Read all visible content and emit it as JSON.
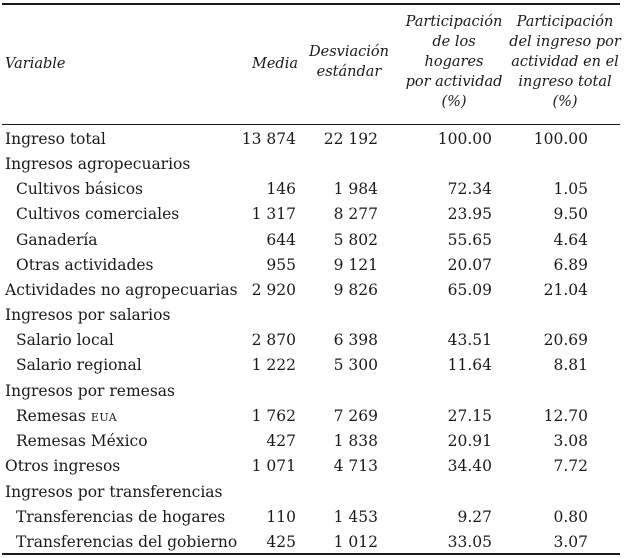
{
  "header": {
    "variable": "Variable",
    "media": "Media",
    "desviacion": [
      "Desviación",
      "estándar"
    ],
    "participacion_hogares": [
      "Participación",
      "de los",
      "hogares",
      "por actividad",
      "(%)"
    ],
    "participacion_ingreso": [
      "Participación",
      "del ingreso por",
      "actividad en el",
      "ingreso total",
      "(%)"
    ]
  },
  "rows": [
    {
      "label": "Ingreso total",
      "indent": false,
      "media": "13 874",
      "desv": "22 192",
      "hog": "100.00",
      "ing": "100.00"
    },
    {
      "label": "Ingresos agropecuarios",
      "indent": false,
      "media": "",
      "desv": "",
      "hog": "",
      "ing": ""
    },
    {
      "label": "Cultivos básicos",
      "indent": true,
      "media": "146",
      "desv": "1 984",
      "hog": "72.34",
      "ing": "1.05"
    },
    {
      "label": "Cultivos comerciales",
      "indent": true,
      "media": "1 317",
      "desv": "8 277",
      "hog": "23.95",
      "ing": "9.50"
    },
    {
      "label": "Ganadería",
      "indent": true,
      "media": "644",
      "desv": "5 802",
      "hog": "55.65",
      "ing": "4.64"
    },
    {
      "label": "Otras actividades",
      "indent": true,
      "media": "955",
      "desv": "9 121",
      "hog": "20.07",
      "ing": "6.89"
    },
    {
      "label": "Actividades no agropecuarias",
      "indent": false,
      "media": "2 920",
      "desv": "9 826",
      "hog": "65.09",
      "ing": "21.04"
    },
    {
      "label": "Ingresos por salarios",
      "indent": false,
      "media": "",
      "desv": "",
      "hog": "",
      "ing": ""
    },
    {
      "label": "Salario local",
      "indent": true,
      "media": "2 870",
      "desv": "6 398",
      "hog": "43.51",
      "ing": "20.69"
    },
    {
      "label": "Salario regional",
      "indent": true,
      "media": "1 222",
      "desv": "5 300",
      "hog": "11.64",
      "ing": "8.81"
    },
    {
      "label": "Ingresos por remesas",
      "indent": false,
      "media": "",
      "desv": "",
      "hog": "",
      "ing": ""
    },
    {
      "label": "Remesas",
      "suffix": "EUA",
      "indent": true,
      "media": "1 762",
      "desv": "7 269",
      "hog": "27.15",
      "ing": "12.70"
    },
    {
      "label": "Remesas México",
      "indent": true,
      "media": "427",
      "desv": "1 838",
      "hog": "20.91",
      "ing": "3.08"
    },
    {
      "label": "Otros ingresos",
      "indent": false,
      "media": "1 071",
      "desv": "4 713",
      "hog": "34.40",
      "ing": "7.72"
    },
    {
      "label": "Ingresos por transferencias",
      "indent": false,
      "media": "",
      "desv": "",
      "hog": "",
      "ing": ""
    },
    {
      "label": "Transferencias de hogares",
      "indent": true,
      "media": "110",
      "desv": "1 453",
      "hog": "9.27",
      "ing": "0.80"
    },
    {
      "label": "Transferencias del gobierno",
      "indent": true,
      "media": "425",
      "desv": "1 012",
      "hog": "33.05",
      "ing": "3.07"
    }
  ]
}
